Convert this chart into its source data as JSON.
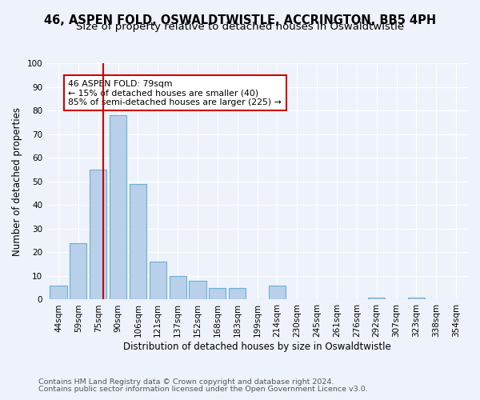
{
  "title": "46, ASPEN FOLD, OSWALDTWISTLE, ACCRINGTON, BB5 4PH",
  "subtitle": "Size of property relative to detached houses in Oswaldtwistle",
  "xlabel": "Distribution of detached houses by size in Oswaldtwistle",
  "ylabel": "Number of detached properties",
  "categories": [
    "44sqm",
    "59sqm",
    "75sqm",
    "90sqm",
    "106sqm",
    "121sqm",
    "137sqm",
    "152sqm",
    "168sqm",
    "183sqm",
    "199sqm",
    "214sqm",
    "230sqm",
    "245sqm",
    "261sqm",
    "276sqm",
    "292sqm",
    "307sqm",
    "323sqm",
    "338sqm",
    "354sqm"
  ],
  "values": [
    6,
    24,
    55,
    78,
    49,
    16,
    10,
    8,
    5,
    5,
    0,
    6,
    0,
    0,
    0,
    0,
    1,
    0,
    1,
    0,
    0
  ],
  "bar_color": "#b8d0ea",
  "bar_edge_color": "#6aaed6",
  "vline_color": "#cc0000",
  "annotation_line1": "46 ASPEN FOLD: 79sqm",
  "annotation_line2": "← 15% of detached houses are smaller (40)",
  "annotation_line3": "85% of semi-detached houses are larger (225) →",
  "annotation_box_color": "#ffffff",
  "annotation_box_edge_color": "#cc0000",
  "ylim": [
    0,
    100
  ],
  "yticks": [
    0,
    10,
    20,
    30,
    40,
    50,
    60,
    70,
    80,
    90,
    100
  ],
  "footer_line1": "Contains HM Land Registry data © Crown copyright and database right 2024.",
  "footer_line2": "Contains public sector information licensed under the Open Government Licence v3.0.",
  "bg_color": "#eef2fb",
  "grid_color": "#ffffff",
  "title_fontsize": 10.5,
  "subtitle_fontsize": 9.5,
  "axis_label_fontsize": 8.5,
  "tick_fontsize": 7.5,
  "annotation_fontsize": 7.8,
  "footer_fontsize": 6.8
}
